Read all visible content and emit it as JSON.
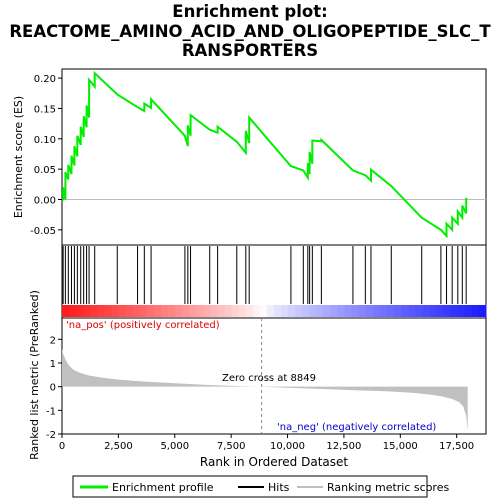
{
  "title_lines": [
    "Enrichment plot:",
    "REACTOME_AMINO_ACID_AND_OLIGOPEPTIDE_SLC_T",
    "RANSPORTERS"
  ],
  "colors": {
    "enrichment": "#00ee00",
    "hits": "#000000",
    "metric_fill": "#c0c0c0",
    "pos_label": "#dd0000",
    "neg_label": "#0000cc",
    "zero_line": "#888888"
  },
  "legend": {
    "enrichment": "Enrichment profile",
    "hits": "Hits",
    "ranking": "Ranking metric scores"
  },
  "chart_data": [
    {
      "type": "line",
      "name": "enrichment-profile",
      "ylabel": "Enrichment score (ES)",
      "xlim": [
        0,
        18800
      ],
      "ylim": [
        -0.075,
        0.215
      ],
      "y_ticks": [
        0.2,
        0.15,
        0.1,
        0.05,
        0.0,
        -0.05
      ],
      "y_tick_labels": [
        "0.20",
        "0.15",
        "0.10",
        "0.05",
        "0.00",
        "-0.05"
      ],
      "hits": [
        50,
        150,
        280,
        420,
        550,
        680,
        830,
        960,
        1090,
        1200,
        1450,
        2450,
        3350,
        3650,
        3950,
        5450,
        5580,
        5700,
        6550,
        6900,
        7750,
        8150,
        8300,
        10150,
        10700,
        10900,
        10980,
        11100,
        11500,
        12900,
        13450,
        13700,
        14600,
        15950,
        16800,
        17050,
        17300,
        17550,
        17750,
        17920
      ],
      "es": [
        0.02,
        0.045,
        0.057,
        0.072,
        0.088,
        0.105,
        0.12,
        0.137,
        0.155,
        0.197,
        0.208,
        0.173,
        0.152,
        0.158,
        0.165,
        0.105,
        0.122,
        0.139,
        0.115,
        0.12,
        0.095,
        0.113,
        0.135,
        0.055,
        0.048,
        0.06,
        0.078,
        0.097,
        0.098,
        0.048,
        0.04,
        0.049,
        0.022,
        -0.03,
        -0.05,
        -0.04,
        -0.03,
        -0.02,
        -0.01,
        0.003
      ]
    },
    {
      "type": "area",
      "name": "ranked-list-metric",
      "ylabel": "Ranked list metric (PreRanked)",
      "xlabel": "Rank in Ordered Dataset",
      "xlim": [
        0,
        18800
      ],
      "ylim": [
        -2.0,
        2.9
      ],
      "x_ticks": [
        0,
        2500,
        5000,
        7500,
        10000,
        12500,
        15000,
        17500
      ],
      "x_tick_labels": [
        "0",
        "2,500",
        "5,000",
        "7,500",
        "10,000",
        "12,500",
        "15,000",
        "17,500"
      ],
      "y_ticks": [
        2,
        1,
        0,
        -1,
        -2
      ],
      "y_tick_labels": [
        "2",
        "1",
        "0",
        "-1",
        "-2"
      ],
      "x": [
        0,
        50,
        150,
        300,
        500,
        800,
        1200,
        1800,
        2500,
        3500,
        5000,
        6500,
        8000,
        8849,
        10000,
        11500,
        13000,
        14500,
        15500,
        16300,
        16900,
        17300,
        17600,
        17800,
        17920,
        17990
      ],
      "values": [
        1.6,
        1.4,
        1.15,
        0.9,
        0.72,
        0.58,
        0.47,
        0.38,
        0.3,
        0.22,
        0.14,
        0.07,
        0.02,
        0.0,
        -0.05,
        -0.1,
        -0.15,
        -0.2,
        -0.26,
        -0.33,
        -0.42,
        -0.52,
        -0.65,
        -0.85,
        -1.25,
        -1.85
      ],
      "zero_cross_label": "Zero cross at 8849",
      "zero_cross": 8849,
      "pos_label": "'na_pos' (positively correlated)",
      "neg_label": "'na_neg' (negatively correlated)"
    }
  ]
}
